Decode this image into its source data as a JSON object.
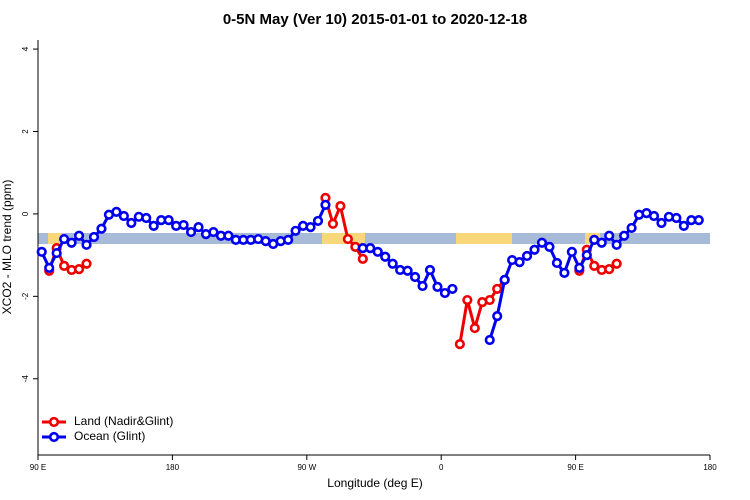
{
  "chart_data": {
    "type": "line",
    "title": "0-5N May (Ver 10)   2015-01-01 to 2020-12-18",
    "x_label": "Longitude (deg E)",
    "y_label": "XCO2 - MLO trend (ppm)",
    "xlim": [
      90,
      540
    ],
    "xticks": [
      {
        "value": 90,
        "label": "90 E"
      },
      180,
      {
        "value": 270,
        "label": "90 W"
      },
      {
        "value": 360,
        "label": "0"
      },
      {
        "value": 450,
        "label": "90 E"
      },
      {
        "value": 540,
        "label": "180"
      }
    ],
    "ylim": [
      -5.85,
      4.22
    ],
    "yticks": [
      -4,
      -2,
      0,
      2,
      4
    ],
    "legend": "bottom-left",
    "x": [
      92.5,
      97.5,
      102.5,
      107.5,
      112.5,
      117.5,
      122.5,
      127.5,
      132.5,
      137.5,
      142.5,
      147.5,
      152.5,
      157.5,
      162.5,
      167.5,
      172.5,
      177.5,
      182.5,
      187.5,
      192.5,
      197.5,
      202.5,
      207.5,
      212.5,
      217.5,
      222.5,
      227.5,
      232.5,
      237.5,
      242.5,
      247.5,
      252.5,
      257.5,
      262.5,
      267.5,
      272.5,
      277.5,
      282.5,
      287.5,
      292.5,
      297.5,
      302.5,
      307.5,
      312.5,
      317.5,
      322.5,
      327.5,
      332.5,
      337.5,
      342.5,
      347.5,
      352.5,
      357.5,
      362.5,
      367.5,
      372.5,
      377.5,
      382.5,
      387.5,
      392.5,
      397.5,
      402.5,
      407.5,
      412.5,
      417.5,
      422.5,
      427.5,
      432.5,
      437.5,
      442.5,
      447.5,
      452.5,
      457.5,
      462.5,
      467.5,
      472.5,
      477.5,
      482.5,
      487.5,
      492.5,
      497.5,
      502.5,
      507.5,
      512.5,
      517.5,
      522.5,
      527.5,
      532.5
    ],
    "series": [
      {
        "name": "Land (Nadir&Glint)",
        "color": "#ee0000",
        "values": [
          null,
          -1.38,
          -0.83,
          -1.26,
          -1.36,
          -1.34,
          -1.21,
          null,
          null,
          null,
          null,
          null,
          null,
          null,
          null,
          null,
          null,
          null,
          null,
          null,
          null,
          null,
          null,
          null,
          null,
          null,
          null,
          null,
          null,
          null,
          null,
          null,
          null,
          null,
          null,
          null,
          null,
          null,
          0.39,
          -0.24,
          0.19,
          -0.61,
          -0.8,
          -1.09,
          null,
          null,
          null,
          null,
          null,
          null,
          null,
          null,
          null,
          null,
          null,
          null,
          -3.16,
          -2.09,
          -2.77,
          -2.14,
          -2.09,
          -1.82,
          -1.6,
          null,
          null,
          null,
          null,
          null,
          null,
          null,
          null,
          null,
          -1.38,
          -0.87,
          -1.26,
          -1.36,
          -1.34,
          -1.21,
          null,
          null,
          null,
          null,
          null,
          null,
          null,
          null,
          null,
          null,
          null
        ]
      },
      {
        "name": "Ocean (Glint)",
        "color": "#0000ee",
        "values": [
          -0.92,
          -1.31,
          -0.95,
          -0.61,
          -0.7,
          -0.53,
          -0.75,
          -0.56,
          -0.36,
          -0.02,
          0.05,
          -0.05,
          -0.22,
          -0.07,
          -0.1,
          -0.29,
          -0.15,
          -0.15,
          -0.29,
          -0.27,
          -0.44,
          -0.32,
          -0.49,
          -0.44,
          -0.53,
          -0.53,
          -0.63,
          -0.63,
          -0.63,
          -0.61,
          -0.66,
          -0.73,
          -0.66,
          -0.63,
          -0.41,
          -0.29,
          -0.32,
          -0.17,
          0.22,
          null,
          null,
          null,
          null,
          -0.83,
          -0.83,
          -0.92,
          -1.04,
          -1.21,
          -1.36,
          -1.38,
          -1.53,
          -1.75,
          -1.36,
          -1.77,
          -1.92,
          -1.82,
          null,
          null,
          null,
          null,
          -3.06,
          -2.48,
          -1.6,
          -1.12,
          -1.17,
          -1.02,
          -0.87,
          -0.7,
          -0.8,
          -1.19,
          -1.43,
          -0.92,
          -1.31,
          -1.0,
          -0.63,
          -0.7,
          -0.53,
          -0.75,
          -0.53,
          -0.34,
          -0.02,
          0.02,
          -0.05,
          -0.22,
          -0.07,
          -0.1,
          -0.29,
          -0.15,
          -0.15
        ]
      }
    ]
  }
}
